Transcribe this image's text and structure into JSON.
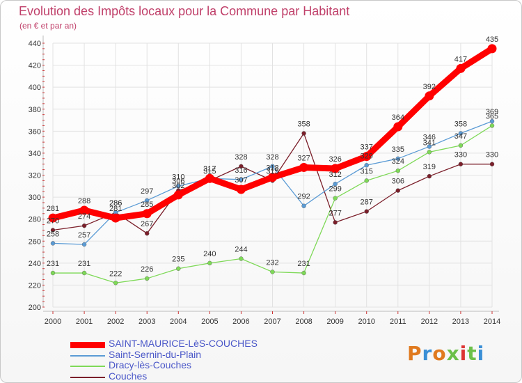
{
  "title": "Evolution des Impôts locaux pour la Commune par Habitant",
  "subtitle": "(en € et par an)",
  "logo": "Proxiti",
  "colors": {
    "title": "#c0406a",
    "legend_text": "#4a57c8",
    "grid": "#e2e2e2",
    "axis": "#cc3333"
  },
  "chart_data": {
    "type": "line",
    "title": "Evolution des Impôts locaux pour la Commune par Habitant",
    "xlabel": "",
    "ylabel": "(en € et par an)",
    "ylim": [
      200,
      440
    ],
    "yticks": [
      200,
      220,
      240,
      260,
      280,
      300,
      320,
      340,
      360,
      380,
      400,
      420,
      440
    ],
    "categories": [
      "2000",
      "2001",
      "2002",
      "2003",
      "2004",
      "2005",
      "2006",
      "2007",
      "2008",
      "2009",
      "2010",
      "2011",
      "2012",
      "2013",
      "2014"
    ],
    "legend_position": "bottom-left",
    "series": [
      {
        "name": "SAINT-MAURICE-LèS-COUCHES",
        "color": "#ff0000",
        "values": [
          281,
          288,
          281,
          285,
          302,
          317,
          307,
          318,
          327,
          326,
          337,
          364,
          392,
          417,
          435
        ]
      },
      {
        "name": "Saint-Sernin-du-Plain",
        "color": "#5b9bd5",
        "values": [
          258,
          257,
          286,
          297,
          310,
          317,
          316,
          328,
          292,
          312,
          329,
          335,
          346,
          358,
          369
        ]
      },
      {
        "name": "Dracy-lès-Couches",
        "color": "#7ed957",
        "values": [
          231,
          231,
          222,
          226,
          235,
          240,
          244,
          232,
          231,
          299,
          315,
          324,
          341,
          347,
          365
        ]
      },
      {
        "name": "Couches",
        "color": "#7b1f2a",
        "values": [
          270,
          274,
          286,
          267,
          306,
          315,
          328,
          315,
          358,
          277,
          287,
          306,
          319,
          330,
          330
        ]
      }
    ]
  }
}
